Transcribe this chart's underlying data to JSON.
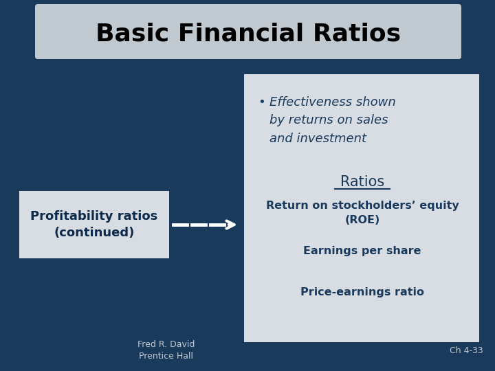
{
  "title": "Basic Financial Ratios",
  "bg_color": "#1a3a5c",
  "title_bg": "#c0c8d0",
  "title_color": "#000000",
  "box_bg": "#d8dde4",
  "left_box_text": "Profitability ratios\n(continued)",
  "left_box_text_color": "#0d2a4a",
  "bullet_char": "•",
  "bullet_text": "Effectiveness shown\nby returns on sales\nand investment",
  "bullet_color": "#1a3a5c",
  "ratios_label": "Ratios",
  "ratios_color": "#1a3a5c",
  "ratio_items": [
    "Return on stockholders’ equity\n(ROE)",
    "Earnings per share",
    "Price-earnings ratio"
  ],
  "ratio_items_color": "#1a3a5c",
  "footer_left": "Fred R. David\nPrentice Hall",
  "footer_right": "Ch 4-33",
  "footer_color": "#c0c8d0",
  "arrow_color": "#ffffff"
}
